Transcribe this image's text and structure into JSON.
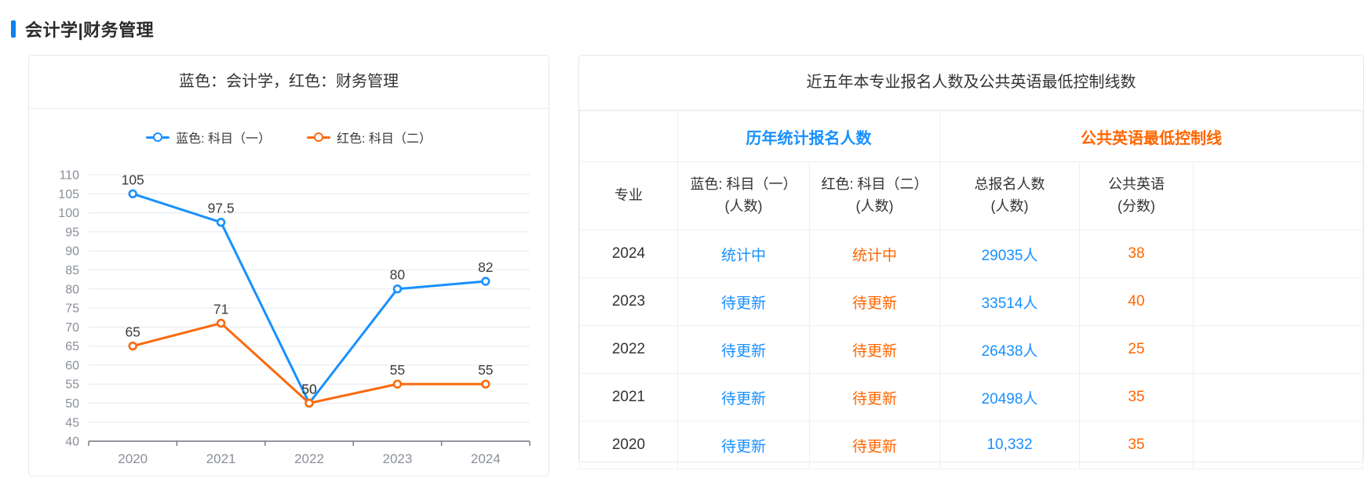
{
  "header": {
    "title": "会计学|财务管理",
    "accent_color": "#0c80f1"
  },
  "chart_panel": {
    "title": "蓝色：会计学，红色：财务管理"
  },
  "chart_data": {
    "type": "line",
    "title": "蓝色：会计学，红色：财务管理",
    "categories": [
      "2020",
      "2021",
      "2022",
      "2023",
      "2024"
    ],
    "series": [
      {
        "name": "蓝色: 科目（一）",
        "color": "#1890ff",
        "values": [
          105,
          97.5,
          50,
          80,
          82
        ]
      },
      {
        "name": "红色: 科目（二）",
        "color": "#fa6a0e",
        "values": [
          65,
          71,
          50,
          55,
          55
        ]
      }
    ],
    "ylim": [
      40,
      110
    ],
    "ytick_step": 5,
    "grid": true,
    "legend_position": "top",
    "xlabel": "",
    "ylabel": "",
    "point_labels": true,
    "axis_label_color": "#8a8f99",
    "grid_color": "#e3e7f2",
    "axis_line_color": "#6f7480",
    "point_label_color": "#3d3d3d"
  },
  "table_panel": {
    "title": "近五年本专业报名人数及公共英语最低控制线数",
    "group_headers": [
      {
        "label": "历年统计报名人数",
        "color": "#1890ff"
      },
      {
        "label": "公共英语最低控制线",
        "color": "#ff6600"
      }
    ],
    "columns": [
      {
        "line1": "专业",
        "line2": ""
      },
      {
        "line1": "蓝色: 科目（一）",
        "line2": "(人数)"
      },
      {
        "line1": "红色: 科目（二）",
        "line2": "(人数)"
      },
      {
        "line1": "总报名人数",
        "line2": "(人数)"
      },
      {
        "line1": "公共英语",
        "line2": "(分数)"
      },
      {
        "line1": "",
        "line2": ""
      }
    ],
    "rows": [
      {
        "year": "2024",
        "subject1": "统计中",
        "subject2": "统计中",
        "total": "29035人",
        "english": "38"
      },
      {
        "year": "2023",
        "subject1": "待更新",
        "subject2": "待更新",
        "total": "33514人",
        "english": "40"
      },
      {
        "year": "2022",
        "subject1": "待更新",
        "subject2": "待更新",
        "total": "26438人",
        "english": "25"
      },
      {
        "year": "2021",
        "subject1": "待更新",
        "subject2": "待更新",
        "total": "20498人",
        "english": "35"
      },
      {
        "year": "2020",
        "subject1": "待更新",
        "subject2": "待更新",
        "total": "10,332",
        "english": "35"
      }
    ],
    "colors": {
      "year": "#333333",
      "blue": "#1890ff",
      "orange": "#ff6600"
    }
  }
}
